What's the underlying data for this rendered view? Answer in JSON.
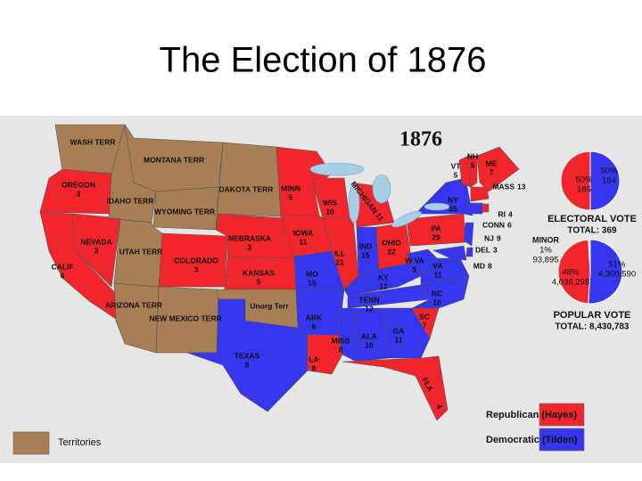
{
  "title": "The Election of 1876",
  "map": {
    "title": "1876",
    "states": [
      {
        "name": "WASH TERR",
        "party": "territory"
      },
      {
        "name": "OREGON",
        "votes": 3,
        "party": "republican"
      },
      {
        "name": "CALIF",
        "votes": 6,
        "party": "republican"
      },
      {
        "name": "NEVADA",
        "votes": 3,
        "party": "republican"
      },
      {
        "name": "IDAHO TERR",
        "party": "territory"
      },
      {
        "name": "MONTANA TERR",
        "party": "territory"
      },
      {
        "name": "WYOMING TERR",
        "party": "territory"
      },
      {
        "name": "UTAH TERR",
        "party": "territory"
      },
      {
        "name": "ARIZONA TERR",
        "party": "territory"
      },
      {
        "name": "COLORADO",
        "votes": 3,
        "party": "republican"
      },
      {
        "name": "NEW MEXICO TERR",
        "party": "territory"
      },
      {
        "name": "DAKOTA TERR",
        "party": "territory"
      },
      {
        "name": "NEBRASKA",
        "votes": 3,
        "party": "republican"
      },
      {
        "name": "KANSAS",
        "votes": 5,
        "party": "republican"
      },
      {
        "name": "Unorg Terr",
        "party": "territory"
      },
      {
        "name": "TEXAS",
        "votes": 8,
        "party": "democratic"
      },
      {
        "name": "MINN",
        "votes": 5,
        "party": "republican"
      },
      {
        "name": "IOWA",
        "votes": 11,
        "party": "republican"
      },
      {
        "name": "MO",
        "votes": 15,
        "party": "democratic"
      },
      {
        "name": "ARK",
        "votes": 6,
        "party": "democratic"
      },
      {
        "name": "LA",
        "votes": 8,
        "party": "republican"
      },
      {
        "name": "WIS",
        "votes": 10,
        "party": "republican"
      },
      {
        "name": "ILL",
        "votes": 21,
        "party": "republican"
      },
      {
        "name": "MICHIGAN",
        "votes": 11,
        "party": "republican"
      },
      {
        "name": "IND",
        "votes": 15,
        "party": "democratic"
      },
      {
        "name": "OHIO",
        "votes": 22,
        "party": "republican"
      },
      {
        "name": "KY",
        "votes": 12,
        "party": "democratic"
      },
      {
        "name": "TENN",
        "votes": 12,
        "party": "democratic"
      },
      {
        "name": "MISS",
        "votes": 8,
        "party": "democratic"
      },
      {
        "name": "ALA",
        "votes": 10,
        "party": "democratic"
      },
      {
        "name": "GA",
        "votes": 11,
        "party": "democratic"
      },
      {
        "name": "FLA",
        "votes": 4,
        "party": "republican"
      },
      {
        "name": "SC",
        "votes": 7,
        "party": "republican"
      },
      {
        "name": "NC",
        "votes": 10,
        "party": "democratic"
      },
      {
        "name": "VA",
        "votes": 11,
        "party": "democratic"
      },
      {
        "name": "W VA",
        "votes": 5,
        "party": "democratic"
      },
      {
        "name": "PA",
        "votes": 29,
        "party": "republican"
      },
      {
        "name": "NY",
        "votes": 35,
        "party": "democratic"
      },
      {
        "name": "NJ",
        "votes": 9,
        "party": "democratic"
      },
      {
        "name": "DEL",
        "votes": 3,
        "party": "democratic"
      },
      {
        "name": "MD",
        "votes": 8,
        "party": "democratic"
      },
      {
        "name": "VT",
        "votes": 5,
        "party": "republican"
      },
      {
        "name": "NH",
        "votes": 5,
        "party": "republican"
      },
      {
        "name": "ME",
        "votes": 7,
        "party": "republican"
      },
      {
        "name": "MASS",
        "votes": 13,
        "party": "republican"
      },
      {
        "name": "RI",
        "votes": 4,
        "party": "republican"
      },
      {
        "name": "CONN",
        "votes": 6,
        "party": "democratic"
      }
    ]
  },
  "electoral_vote": {
    "title": "ELECTORAL VOTE",
    "total": "TOTAL: 369",
    "slices": [
      {
        "party": "democratic",
        "percent": 50,
        "percent_label": "50%",
        "votes": "184"
      },
      {
        "party": "republican",
        "percent": 50,
        "percent_label": "50%",
        "votes": "185"
      }
    ]
  },
  "popular_vote": {
    "title": "POPULAR VOTE",
    "total": "TOTAL: 8,430,783",
    "slices": [
      {
        "party": "democratic",
        "percent": 51,
        "percent_label": "51%",
        "votes": "4,300,590"
      },
      {
        "party": "republican",
        "percent": 48,
        "percent_label": "48%",
        "votes": "4,036,298"
      },
      {
        "name": "MINOR",
        "color": "#d8d8d8",
        "percent": 1,
        "percent_label": "1%",
        "votes": "93,895"
      }
    ]
  },
  "legend": [
    {
      "party": "republican",
      "label": "Republican (Hayes)",
      "color": "#f0262c"
    },
    {
      "party": "democratic",
      "label": "Democratic (Tilden)",
      "color": "#3636ee"
    },
    {
      "party": "territory",
      "label": "Territories",
      "color": "#a87e55"
    }
  ]
}
